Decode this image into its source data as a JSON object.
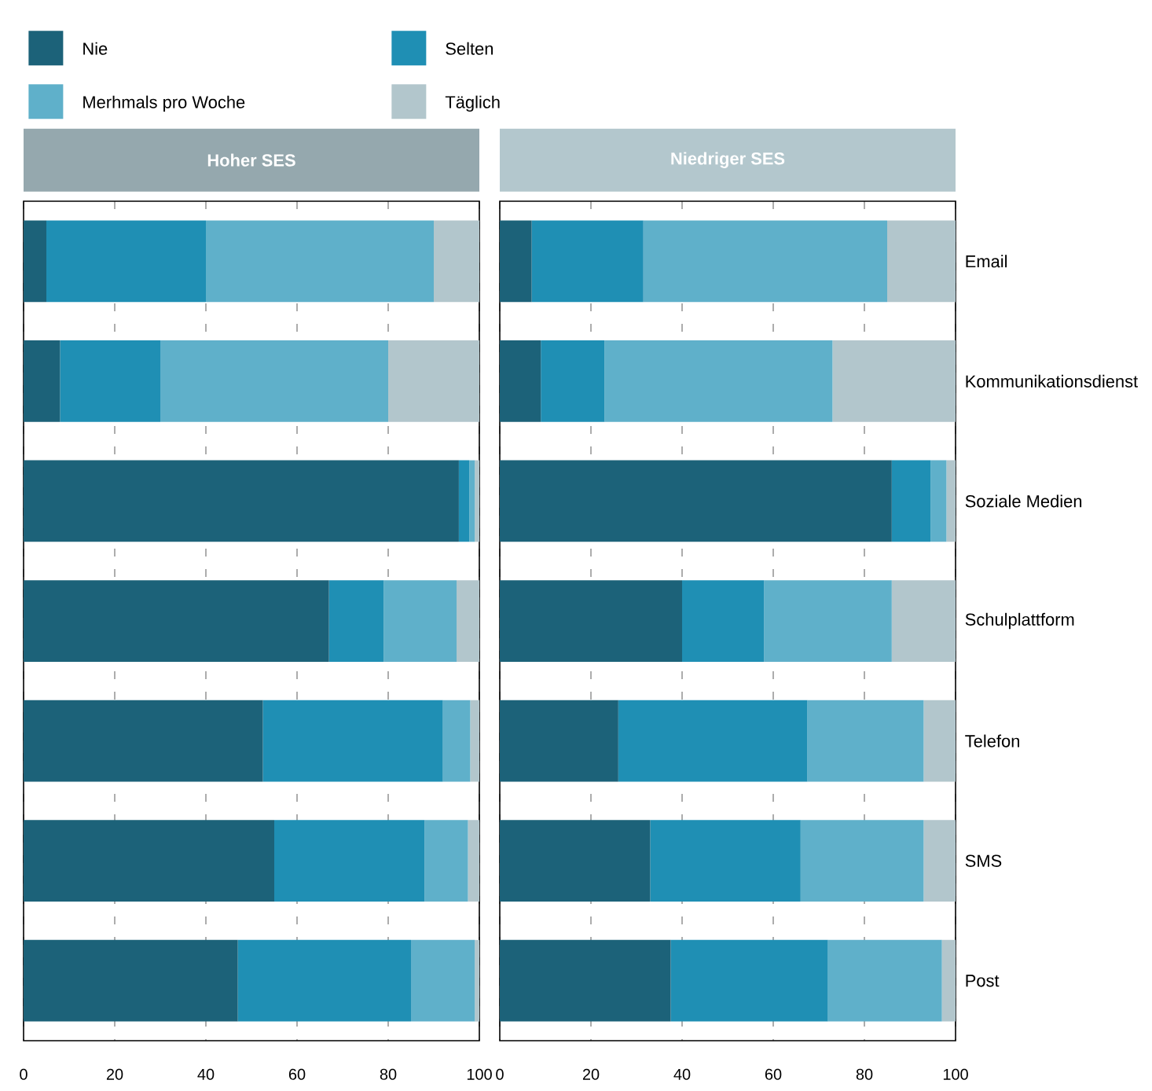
{
  "chart_data": [
    {
      "type": "bar",
      "orientation": "horizontal",
      "stacked": true,
      "title": "Hoher SES",
      "categories": [
        null,
        null,
        null,
        null,
        null,
        null,
        null
      ],
      "series": [
        {
          "name": "Nie",
          "color": "#1c6279",
          "values": [
            5,
            8,
            95.5,
            67,
            52.5,
            55,
            47
          ]
        },
        {
          "name": "Selten",
          "color": "#1f8fb4",
          "values": [
            35,
            22,
            2.3,
            12,
            39.5,
            33,
            38
          ]
        },
        {
          "name": "Merhmals pro Woche",
          "color": "#5fb0ca",
          "values": [
            50,
            50,
            1.2,
            16,
            6,
            9.5,
            14
          ]
        },
        {
          "name": "Täglich",
          "color": "#b2c6cc",
          "values": [
            10,
            20,
            1,
            5,
            2,
            2.5,
            1
          ]
        }
      ],
      "xlim": [
        0,
        100
      ],
      "xticks": [
        0,
        20,
        40,
        60,
        80,
        100
      ],
      "grid": "x",
      "legend": "top left",
      "tick_labels": "x"
    },
    {
      "type": "bar",
      "orientation": "horizontal",
      "stacked": true,
      "title": "Niedriger SES",
      "categories": [
        "Email",
        "Kommunikationsdienst",
        "Soziale Medien",
        "Schulplattform",
        "Telefon",
        "SMS",
        "Post"
      ],
      "series": [
        {
          "color": "#1c6279",
          "values": [
            7,
            9,
            86,
            40,
            26,
            33,
            37.5
          ]
        },
        {
          "color": "#1f8fb4",
          "values": [
            24.5,
            14,
            8.5,
            18,
            41.5,
            33,
            34.5
          ]
        },
        {
          "color": "#5fb0ca",
          "values": [
            53.5,
            50,
            3.5,
            28,
            25.5,
            27,
            25
          ]
        },
        {
          "color": "#b2c6cc",
          "values": [
            15,
            27,
            2,
            14,
            7,
            7,
            3
          ]
        }
      ],
      "xlim": [
        0,
        100
      ],
      "xticks": [
        0,
        20,
        40,
        60,
        80,
        100
      ],
      "grid": "x"
    }
  ]
}
